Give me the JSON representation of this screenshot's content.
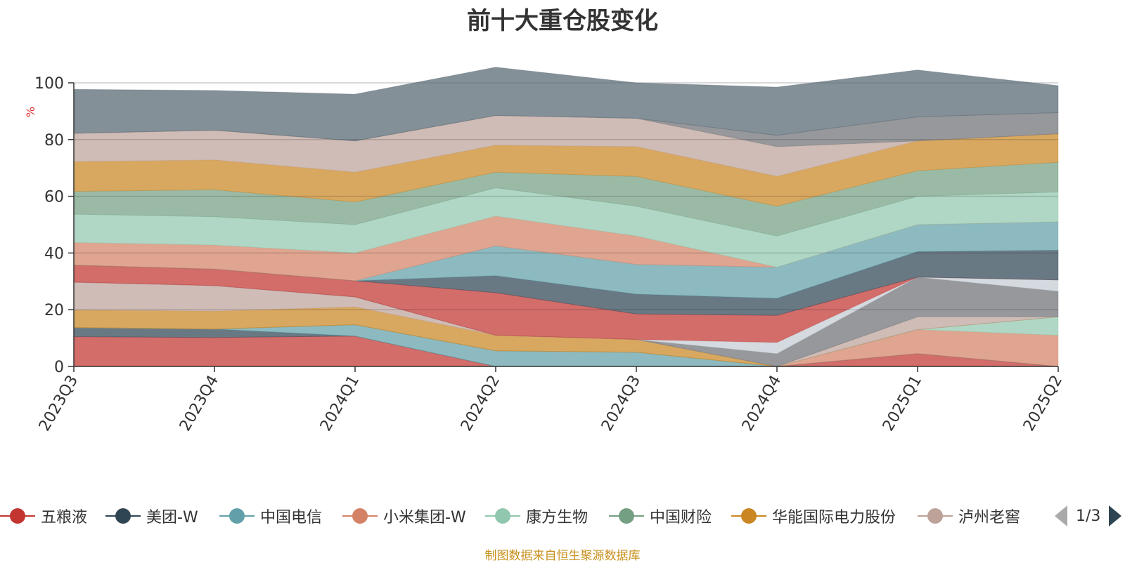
{
  "chart_data": {
    "type": "area",
    "title": "前十大重仓股变化",
    "ylabel": "%",
    "ylim": [
      0,
      100
    ],
    "yticks": [
      0,
      20,
      40,
      60,
      80,
      100
    ],
    "x": [
      "2023Q3",
      "2023Q4",
      "2024Q1",
      "2024Q2",
      "2024Q3",
      "2024Q4",
      "2025Q1",
      "2025Q2"
    ],
    "grid": true,
    "stacked": true,
    "legend_position": "bottom",
    "series": [
      {
        "name": "五粮液",
        "color": "#c23531",
        "values": [
          10.5,
          10.2,
          10.7,
          0,
          0,
          0,
          4.5,
          0
        ]
      },
      {
        "name": "美团-W",
        "color": "#2f4554",
        "values": [
          3.2,
          3.0,
          0,
          0,
          0,
          0,
          0,
          0
        ]
      },
      {
        "name": "中国电信",
        "color": "#61a0a8",
        "values": [
          0,
          0,
          4.0,
          5.5,
          5.0,
          0,
          0,
          0
        ]
      },
      {
        "name": "小米集团-W",
        "color": "#d48265",
        "values": [
          0,
          0,
          0,
          0,
          0,
          0,
          8.5,
          11.0
        ]
      },
      {
        "name": "康方生物",
        "color": "#91c7ae",
        "values": [
          0,
          0,
          0,
          0,
          0,
          0,
          0,
          6.5
        ]
      },
      {
        "name": "中国财险",
        "color": "#749f83",
        "values": [
          0,
          0,
          0,
          0,
          0,
          0,
          0,
          0
        ]
      },
      {
        "name": "华能国际电力股份",
        "color": "#ca8622",
        "values": [
          6.2,
          6.3,
          6.3,
          5.5,
          4.5,
          0,
          0,
          0
        ]
      },
      {
        "name": "泸州老窖",
        "color": "#bda29a",
        "values": [
          9.8,
          9.0,
          3.5,
          0,
          0,
          0,
          4.5,
          0
        ]
      },
      {
        "color": "#6e7074",
        "values": [
          0,
          0,
          0,
          0,
          0,
          4.5,
          14.0,
          9.0
        ]
      },
      {
        "color": "#c4ccd3",
        "values": [
          0,
          0,
          0,
          0,
          0,
          4.0,
          0,
          4.0
        ]
      },
      {
        "color": "#c23531",
        "values": [
          6.0,
          5.8,
          5.7,
          15.0,
          9.0,
          9.5,
          0,
          0
        ]
      },
      {
        "color": "#2f4554",
        "values": [
          0,
          0,
          0,
          6.0,
          7.0,
          6.0,
          9.0,
          10.5
        ]
      },
      {
        "color": "#61a0a8",
        "values": [
          0,
          0,
          0,
          10.5,
          10.5,
          11.0,
          9.5,
          10.0
        ]
      },
      {
        "color": "#d48265",
        "values": [
          8.0,
          8.5,
          9.8,
          10.5,
          10.0,
          0,
          0,
          0
        ]
      },
      {
        "color": "#91c7ae",
        "values": [
          10.0,
          10.0,
          10.0,
          10.0,
          10.5,
          11.0,
          10.0,
          10.5
        ]
      },
      {
        "color": "#749f83",
        "values": [
          8.0,
          9.5,
          8.0,
          5.5,
          10.5,
          10.5,
          9.0,
          10.5
        ]
      },
      {
        "color": "#ca8622",
        "values": [
          10.5,
          10.5,
          10.5,
          9.5,
          10.5,
          10.5,
          10.5,
          10.0
        ]
      },
      {
        "color": "#bda29a",
        "values": [
          10.0,
          10.5,
          11.0,
          10.5,
          10.0,
          10.5,
          0,
          0
        ]
      },
      {
        "color": "#6e7074",
        "values": [
          0,
          0,
          0,
          0,
          0,
          4.0,
          8.5,
          7.5
        ]
      },
      {
        "color": "#546570",
        "values": [
          15.5,
          14.0,
          16.5,
          17.0,
          12.5,
          17.0,
          16.5,
          9.5
        ]
      }
    ]
  },
  "legend": {
    "items": [
      "五粮液",
      "美团-W",
      "中国电信",
      "小米集团-W",
      "康方生物",
      "中国财险",
      "华能国际电力股份",
      "泸州老窖"
    ],
    "page_text": "1/3"
  },
  "footer": {
    "source": "制图数据来自恒生聚源数据库"
  }
}
